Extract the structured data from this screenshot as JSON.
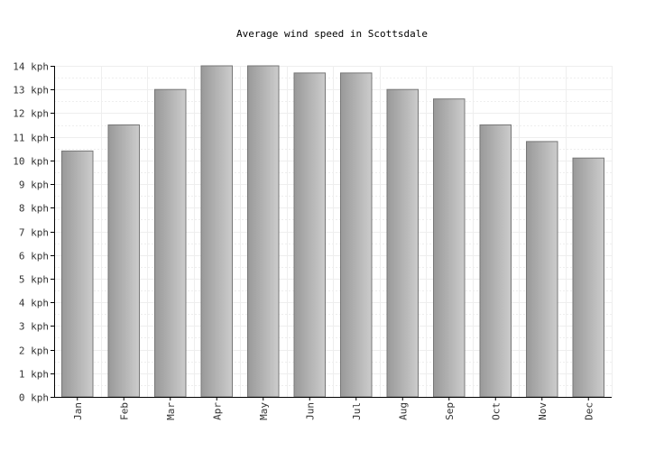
{
  "chart_data": {
    "type": "bar",
    "title": "Average wind speed in Scottsdale",
    "xlabel": "",
    "ylabel": "",
    "unit": "kph",
    "categories": [
      "Jan",
      "Feb",
      "Mar",
      "Apr",
      "May",
      "Jun",
      "Jul",
      "Aug",
      "Sep",
      "Oct",
      "Nov",
      "Dec"
    ],
    "values": [
      10.4,
      11.5,
      13.0,
      14.0,
      14.0,
      13.7,
      13.7,
      13.0,
      12.6,
      11.5,
      10.8,
      10.1
    ],
    "ylim": [
      0,
      14
    ],
    "yticks": [
      0,
      1,
      2,
      3,
      4,
      5,
      6,
      7,
      8,
      9,
      10,
      11,
      12,
      13,
      14
    ],
    "ytick_labels": [
      "0 kph",
      "1 kph",
      "2 kph",
      "3 kph",
      "4 kph",
      "5 kph",
      "6 kph",
      "7 kph",
      "8 kph",
      "9 kph",
      "10 kph",
      "11 kph",
      "12 kph",
      "13 kph",
      "14 kph"
    ],
    "grid": true,
    "legend": "none",
    "colors": {
      "bar_dark": "#999999",
      "bar_light": "#cccccc",
      "bar_stroke": "#777777",
      "grid": "#eeeeee"
    }
  }
}
